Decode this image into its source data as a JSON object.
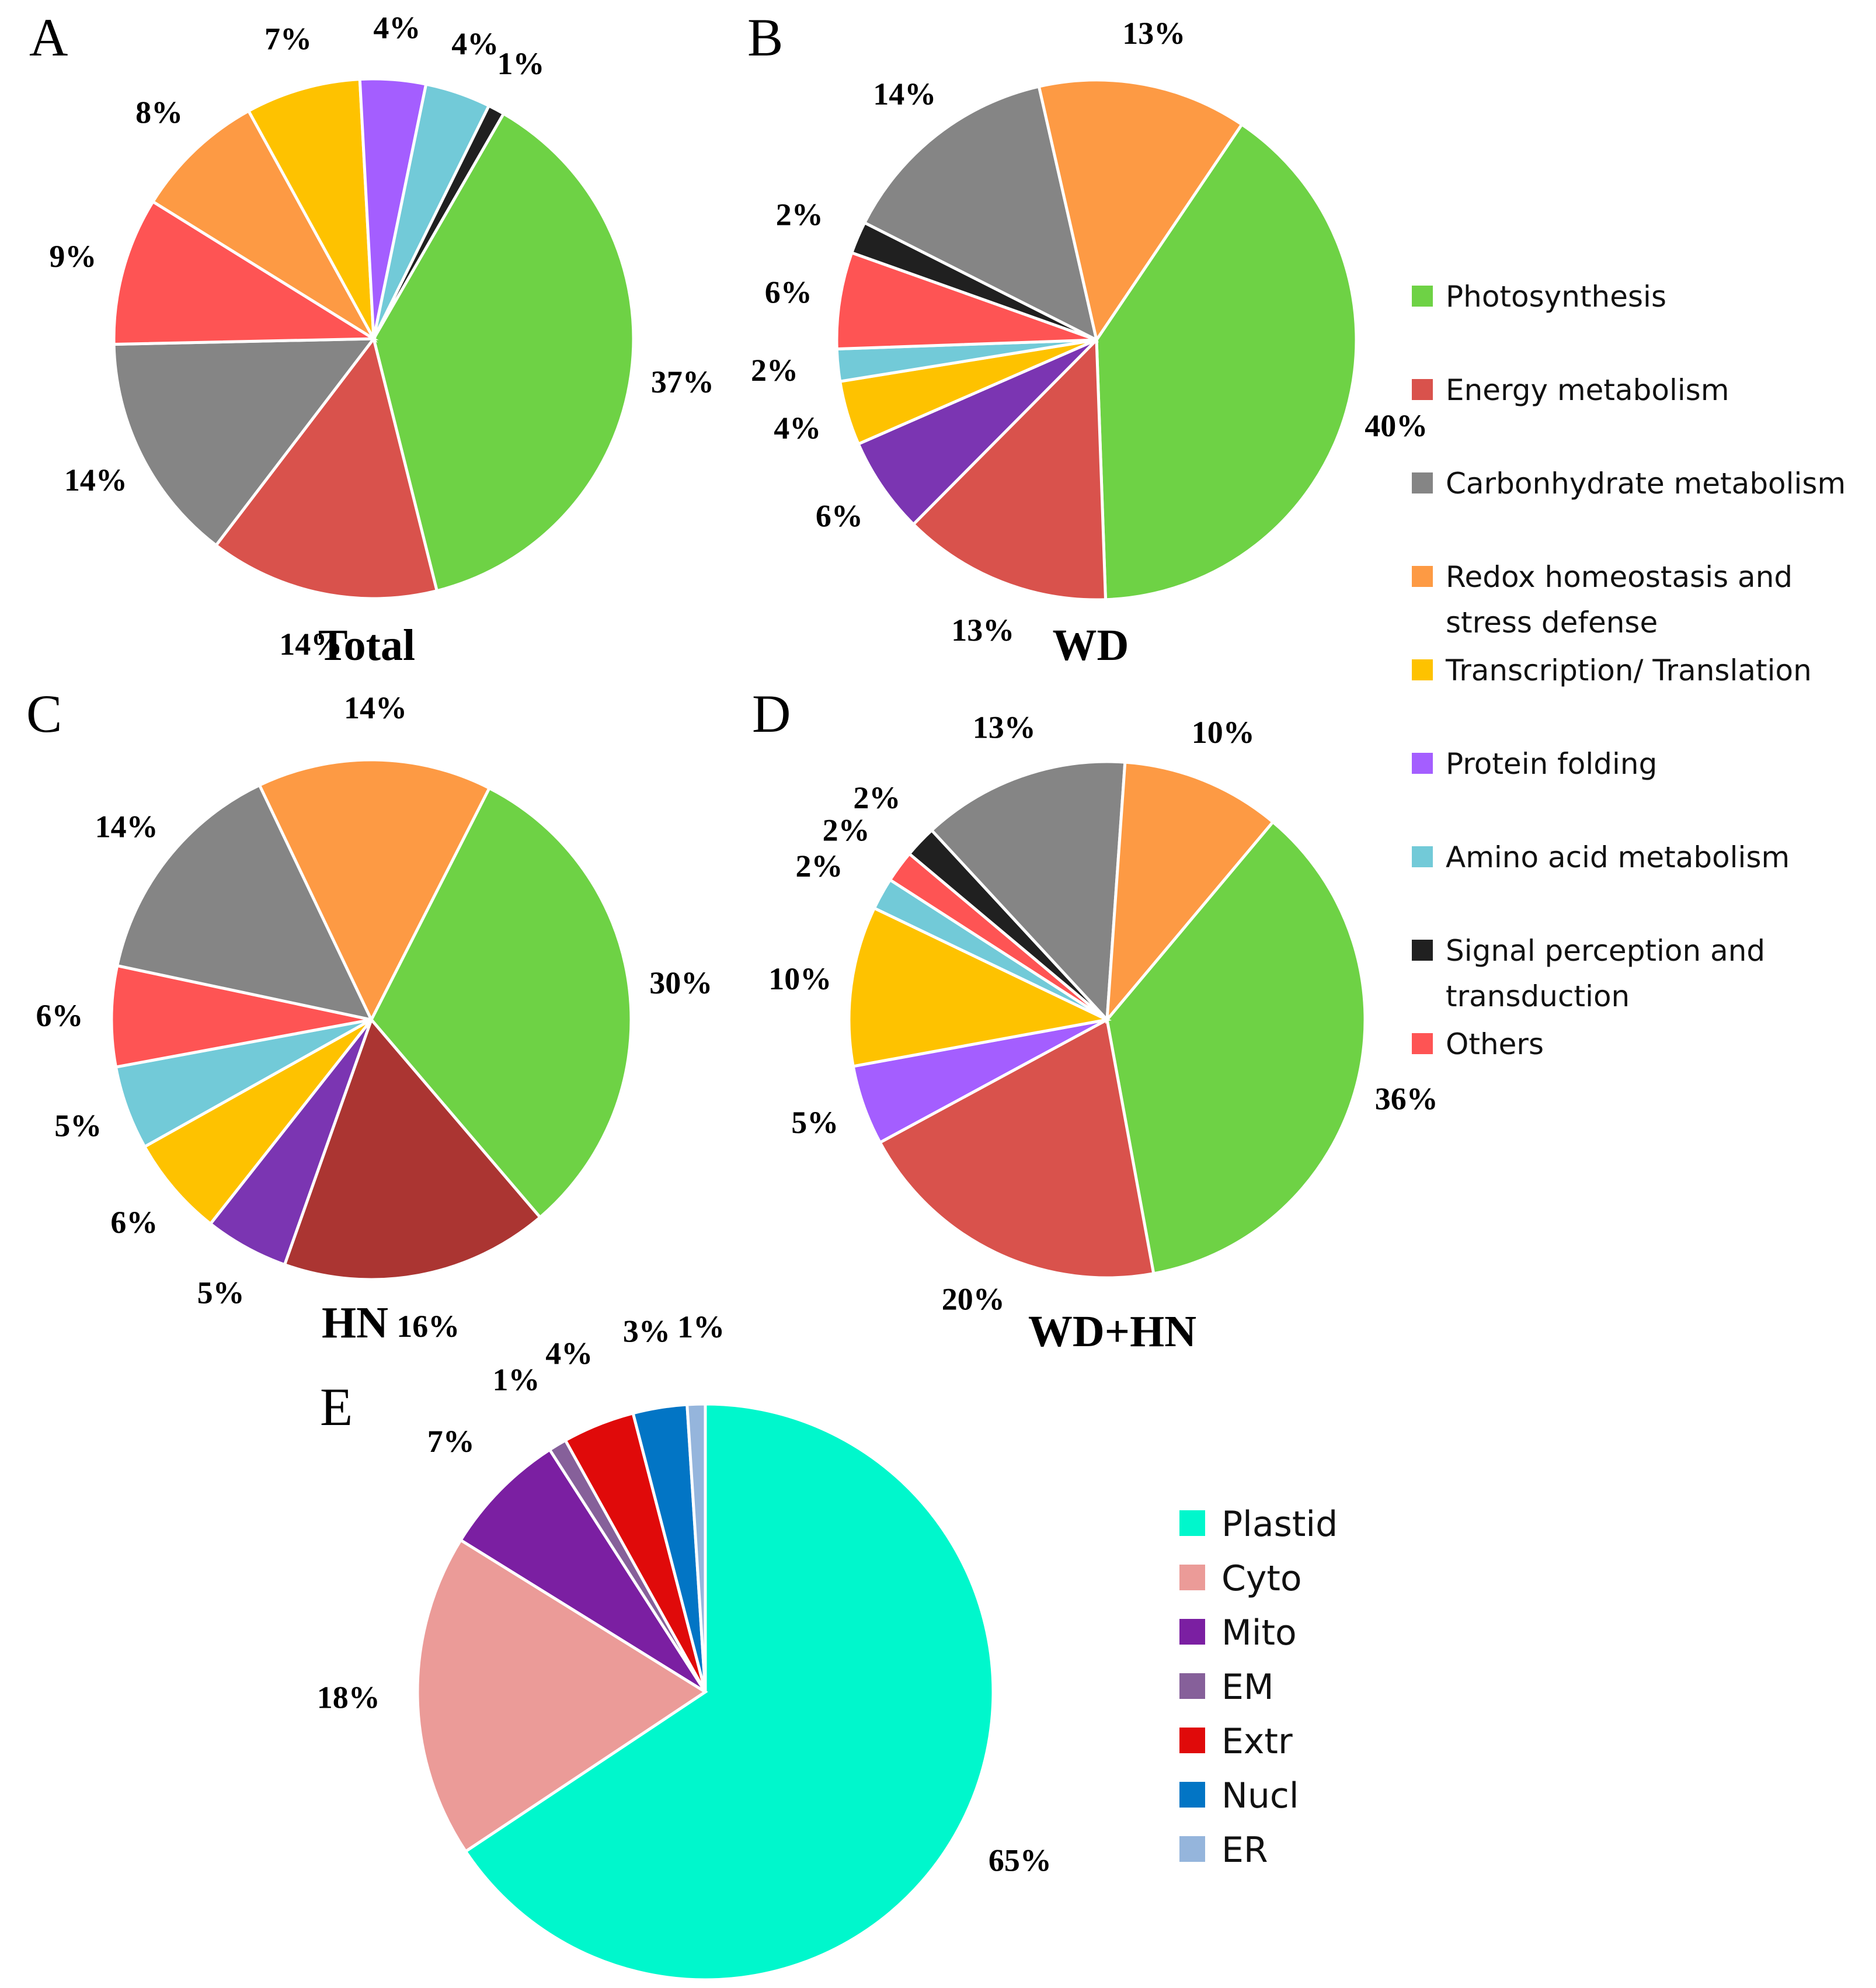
{
  "colors": {
    "Photosynthesis": "#6ed245",
    "Energy metabolism": "#d9524c",
    "Energy metabolism HN": "#ab3532",
    "Carbonhydrate metabolism": "#858585",
    "Redox homeostasis and stress defense": "#fd9a44",
    "Transcription/ Translation": "#fec200",
    "Protein folding": "#a45eff",
    "Protein folding dark": "#7b35b2",
    "Amino acid metabolism": "#72cad8",
    "Signal perception and transduction": "#202020",
    "Others": "#fe5454",
    "Plastid": "#00f7cc",
    "Cyto": "#eb9b98",
    "Mito": "#7b1fa2",
    "EM": "#86609a",
    "Extr": "#e00a0a",
    "Nucl": "#0275c5",
    "ER": "#95b5dc"
  },
  "legend_function": [
    {
      "name": "Photosynthesis",
      "lines": [
        "Photosynthesis"
      ]
    },
    {
      "name": "Energy metabolism",
      "lines": [
        "Energy metabolism"
      ]
    },
    {
      "name": "Carbonhydrate metabolism",
      "lines": [
        "Carbonhydrate metabolism"
      ]
    },
    {
      "name": "Redox homeostasis and stress defense",
      "lines": [
        "Redox homeostasis  and",
        "stress defense"
      ]
    },
    {
      "name": "Transcription/ Translation",
      "lines": [
        "Transcription/ Translation"
      ]
    },
    {
      "name": "Protein folding",
      "lines": [
        "Protein folding"
      ]
    },
    {
      "name": "Amino acid metabolism",
      "lines": [
        "Amino acid metabolism"
      ]
    },
    {
      "name": "Signal perception and transduction",
      "lines": [
        "Signal perception and",
        "transduction"
      ]
    },
    {
      "name": "Others",
      "lines": [
        "Others"
      ]
    }
  ],
  "legend_location": [
    "Plastid",
    "Cyto",
    "Mito",
    "EM",
    "Extr",
    "Nucl",
    "ER"
  ],
  "chart_data": [
    {
      "panel": "A",
      "title": "Total",
      "type": "pie",
      "slices": [
        {
          "category": "Photosynthesis",
          "value": 37,
          "label": "37%"
        },
        {
          "category": "Energy metabolism",
          "value": 14,
          "label": "14%"
        },
        {
          "category": "Carbonhydrate metabolism",
          "value": 14,
          "label": "14%"
        },
        {
          "category": "Others",
          "value": 9,
          "label": "9%"
        },
        {
          "category": "Redox homeostasis and stress defense",
          "value": 8,
          "label": "8%"
        },
        {
          "category": "Transcription/ Translation",
          "value": 7,
          "label": "7%"
        },
        {
          "category": "Protein folding",
          "value": 4,
          "label": "4%"
        },
        {
          "category": "Amino acid metabolism",
          "value": 4,
          "label": "4%"
        },
        {
          "category": "Signal perception and transduction",
          "value": 1,
          "label": "1%"
        }
      ]
    },
    {
      "panel": "B",
      "title": "WD",
      "type": "pie",
      "slices": [
        {
          "category": "Photosynthesis",
          "value": 40,
          "label": "40%"
        },
        {
          "category": "Energy metabolism",
          "value": 13,
          "label": "13%"
        },
        {
          "category": "Protein folding",
          "value": 6,
          "label": "6%",
          "color_key": "Protein folding dark"
        },
        {
          "category": "Transcription/ Translation",
          "value": 4,
          "label": "4%"
        },
        {
          "category": "Amino acid metabolism",
          "value": 2,
          "label": "2%"
        },
        {
          "category": "Others",
          "value": 6,
          "label": "6%"
        },
        {
          "category": "Signal perception and transduction",
          "value": 2,
          "label": "2%"
        },
        {
          "category": "Carbonhydrate metabolism",
          "value": 14,
          "label": "14%"
        },
        {
          "category": "Redox homeostasis and stress defense",
          "value": 13,
          "label": "13%"
        }
      ]
    },
    {
      "panel": "C",
      "title": "HN",
      "type": "pie",
      "slices": [
        {
          "category": "Photosynthesis",
          "value": 30,
          "label": "30%"
        },
        {
          "category": "Energy metabolism",
          "value": 16,
          "label": "16%",
          "color_key": "Energy metabolism HN"
        },
        {
          "category": "Protein folding",
          "value": 5,
          "label": "5%",
          "color_key": "Protein folding dark"
        },
        {
          "category": "Transcription/ Translation",
          "value": 6,
          "label": "6%"
        },
        {
          "category": "Amino acid metabolism",
          "value": 5,
          "label": "5%"
        },
        {
          "category": "Others",
          "value": 6,
          "label": "6%"
        },
        {
          "category": "Carbonhydrate metabolism",
          "value": 14,
          "label": "14%"
        },
        {
          "category": "Redox homeostasis and stress defense",
          "value": 14,
          "label": "14%"
        }
      ]
    },
    {
      "panel": "D",
      "title": "WD+HN",
      "type": "pie",
      "slices": [
        {
          "category": "Photosynthesis",
          "value": 36,
          "label": "36%"
        },
        {
          "category": "Energy metabolism",
          "value": 20,
          "label": "20%"
        },
        {
          "category": "Protein folding",
          "value": 5,
          "label": "5%"
        },
        {
          "category": "Transcription/ Translation",
          "value": 10,
          "label": "10%"
        },
        {
          "category": "Amino acid metabolism",
          "value": 2,
          "label": "2%"
        },
        {
          "category": "Others",
          "value": 2,
          "label": "2%"
        },
        {
          "category": "Signal perception and transduction",
          "value": 2,
          "label": "2%"
        },
        {
          "category": "Carbonhydrate metabolism",
          "value": 13,
          "label": "13%"
        },
        {
          "category": "Redox homeostasis and stress defense",
          "value": 10,
          "label": "10%"
        }
      ]
    },
    {
      "panel": "E",
      "title": "",
      "type": "pie",
      "slices": [
        {
          "category": "Plastid",
          "value": 65,
          "label": "65%"
        },
        {
          "category": "Cyto",
          "value": 18,
          "label": "18%"
        },
        {
          "category": "Mito",
          "value": 7,
          "label": "7%"
        },
        {
          "category": "EM",
          "value": 1,
          "label": "1%"
        },
        {
          "category": "Extr",
          "value": 4,
          "label": "4%"
        },
        {
          "category": "Nucl",
          "value": 3,
          "label": "3%"
        },
        {
          "category": "ER",
          "value": 1,
          "label": "1%"
        }
      ]
    }
  ]
}
